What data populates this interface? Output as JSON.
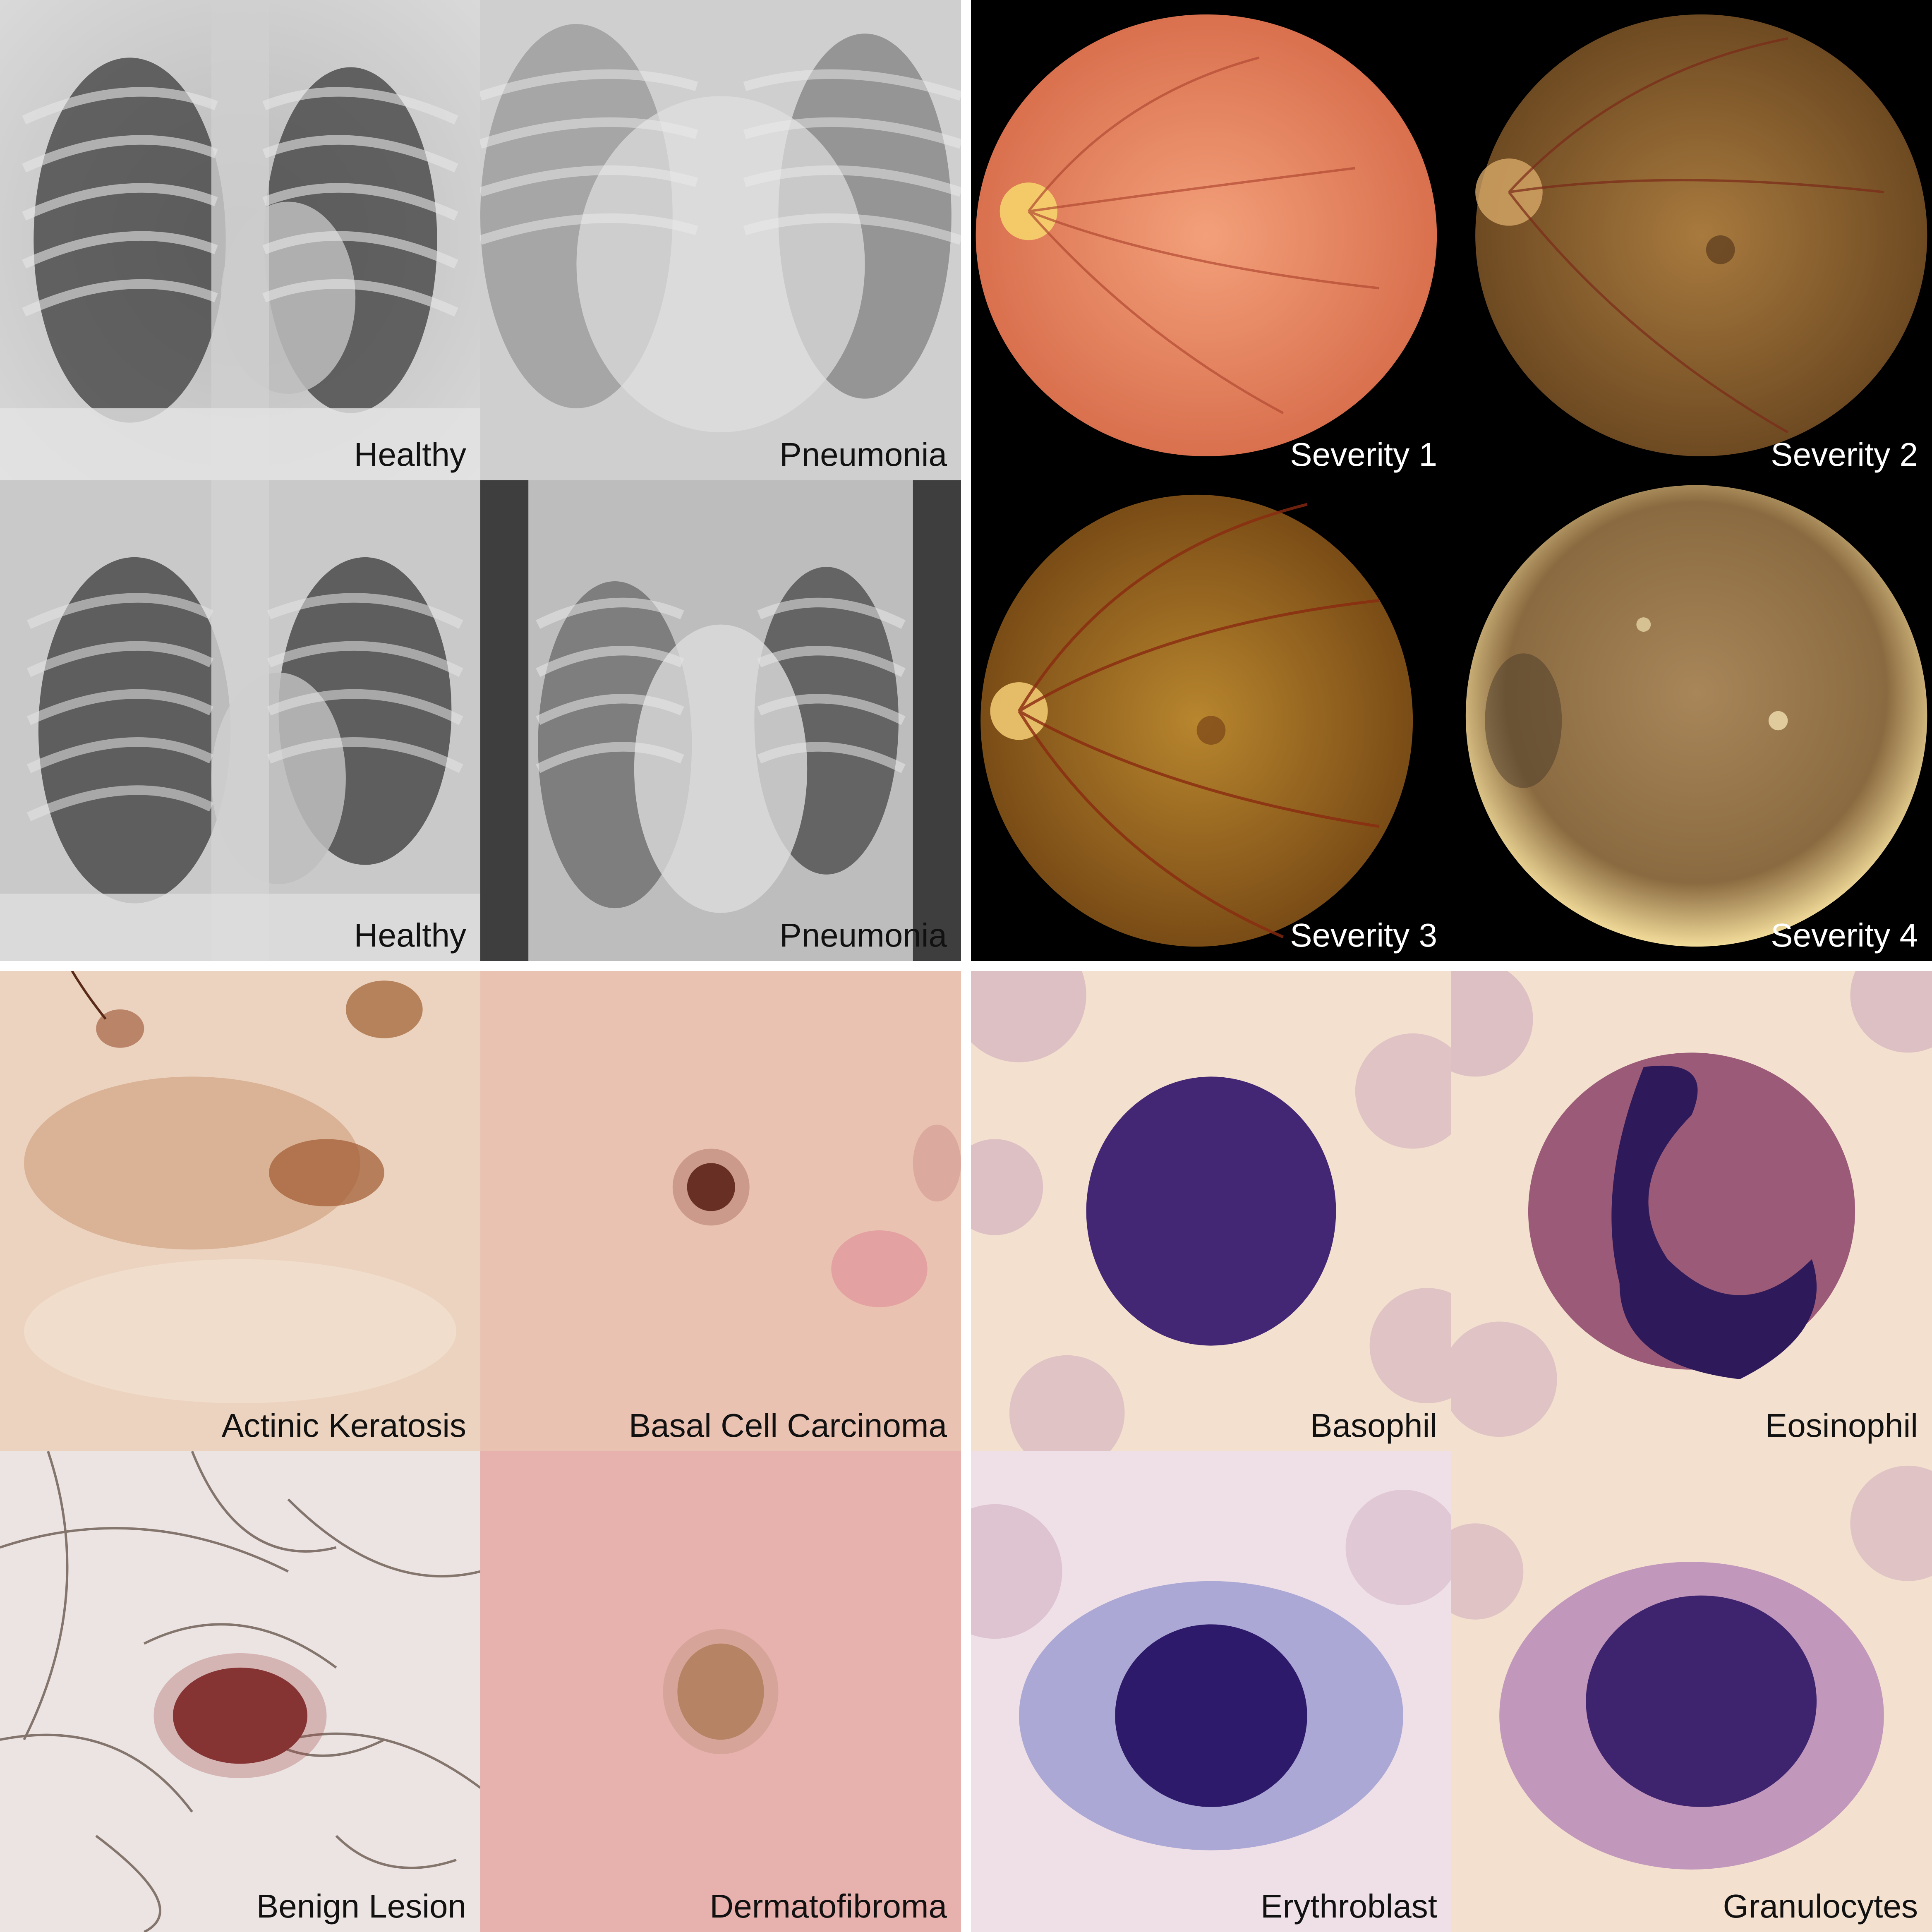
{
  "panels": {
    "xray": {
      "labels": [
        "Healthy",
        "Pneumonia",
        "Healthy",
        "Pneumonia"
      ]
    },
    "fundus": {
      "labels": [
        "Severity 1",
        "Severity 2",
        "Severity 3",
        "Severity 4"
      ]
    },
    "derma": {
      "labels": [
        "Actinic Keratosis",
        "Basal Cell Carcinoma",
        "Benign Lesion",
        "Dermatofibroma"
      ]
    },
    "blood": {
      "labels": [
        "Basophil",
        "Eosinophil",
        "Erythroblast",
        "Granulocytes"
      ]
    }
  },
  "colors": {
    "separator": "#ffffff",
    "label_on_light": "#111111",
    "label_on_dark": "#ffffff"
  }
}
